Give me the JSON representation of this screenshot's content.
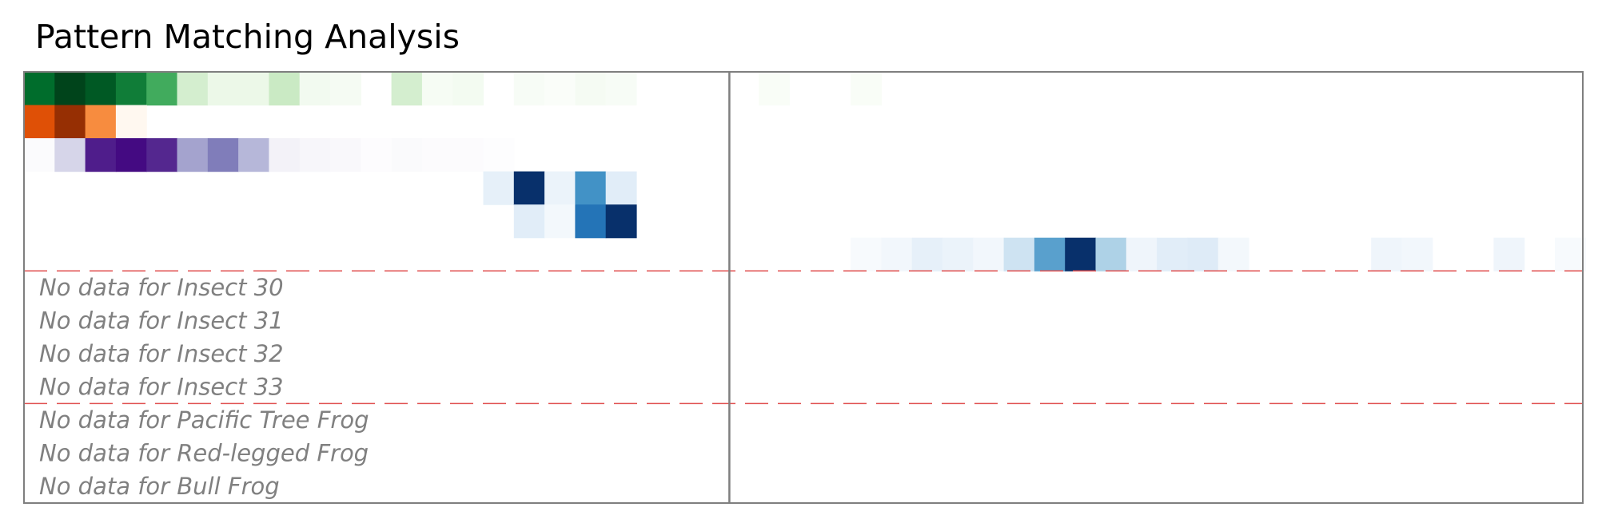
{
  "title": "Pattern Matching Analysis",
  "chart_data": {
    "type": "heatmap",
    "title": "Pattern Matching Analysis",
    "n_columns": 51,
    "divider_after_column": 23,
    "separators_after_rows": [
      6,
      10
    ],
    "rows": [
      {
        "colormap": "Greens",
        "values": [
          0.8,
          1.0,
          0.9,
          0.75,
          0.6,
          0.25,
          0.15,
          0.15,
          0.28,
          0.1,
          0.08,
          0,
          0.25,
          0.07,
          0.09,
          0,
          0.06,
          0.04,
          0.08,
          0.06,
          0,
          0,
          0,
          0,
          0.05,
          0,
          0,
          0.05,
          0,
          0,
          0,
          0,
          0,
          0,
          0,
          0,
          0,
          0,
          0,
          0,
          0,
          0,
          0,
          0,
          0,
          0,
          0,
          0,
          0,
          0,
          0
        ]
      },
      {
        "colormap": "Oranges",
        "values": [
          0.75,
          0.95,
          0.5,
          0.06,
          0,
          0,
          0,
          0,
          0,
          0,
          0,
          0,
          0,
          0,
          0,
          0,
          0,
          0,
          0,
          0,
          0,
          0,
          0,
          0,
          0,
          0,
          0,
          0,
          0,
          0,
          0,
          0,
          0,
          0,
          0,
          0,
          0,
          0,
          0,
          0,
          0,
          0,
          0,
          0,
          0,
          0,
          0,
          0,
          0,
          0,
          0
        ]
      },
      {
        "colormap": "Purples",
        "values": [
          0.05,
          0.3,
          0.85,
          0.95,
          0.8,
          0.48,
          0.6,
          0.42,
          0.15,
          0.1,
          0.08,
          0.03,
          0.06,
          0.04,
          0.04,
          0.02,
          0,
          0,
          0,
          0,
          0,
          0,
          0,
          0,
          0,
          0,
          0,
          0,
          0,
          0,
          0,
          0,
          0,
          0,
          0,
          0,
          0,
          0,
          0,
          0,
          0,
          0,
          0,
          0,
          0,
          0,
          0,
          0,
          0,
          0,
          0
        ]
      },
      {
        "colormap": "Blues",
        "values": [
          0,
          0,
          0,
          0,
          0,
          0,
          0,
          0,
          0,
          0,
          0,
          0,
          0,
          0,
          0,
          0.15,
          1.0,
          0.12,
          0.6,
          0.18,
          0,
          0,
          0,
          0,
          0,
          0,
          0,
          0,
          0,
          0,
          0,
          0,
          0,
          0,
          0,
          0,
          0,
          0,
          0,
          0,
          0,
          0,
          0,
          0,
          0,
          0,
          0,
          0,
          0,
          0,
          0
        ]
      },
      {
        "colormap": "Blues",
        "values": [
          0,
          0,
          0,
          0,
          0,
          0,
          0,
          0,
          0,
          0,
          0,
          0,
          0,
          0,
          0,
          0,
          0.18,
          0.07,
          0.78,
          1.0,
          0,
          0,
          0,
          0,
          0,
          0,
          0,
          0,
          0,
          0,
          0,
          0,
          0,
          0,
          0,
          0,
          0,
          0,
          0,
          0,
          0,
          0,
          0,
          0,
          0,
          0,
          0,
          0,
          0,
          0,
          0
        ]
      },
      {
        "colormap": "Blues",
        "values": [
          0,
          0,
          0,
          0,
          0,
          0,
          0,
          0,
          0,
          0,
          0,
          0,
          0,
          0,
          0,
          0,
          0,
          0,
          0,
          0,
          0,
          0,
          0,
          0,
          0,
          0,
          0,
          0.05,
          0.08,
          0.15,
          0.12,
          0.08,
          0.25,
          0.55,
          1.0,
          0.35,
          0.1,
          0.18,
          0.2,
          0.07,
          0,
          0,
          0,
          0,
          0.1,
          0.08,
          0,
          0,
          0.1,
          0,
          0.05
        ]
      }
    ],
    "no_data_labels": [
      "No data for Insect 30",
      "No data for Insect 31",
      "No data for Insect 32",
      "No data for Insect 33",
      "No data for Pacific Tree Frog",
      "No data for Red-legged Frog",
      "No data for Bull Frog"
    ],
    "colors": {
      "frame": "#7f7f7f",
      "separator": "#e05050",
      "no_data_text": "#808080"
    }
  }
}
